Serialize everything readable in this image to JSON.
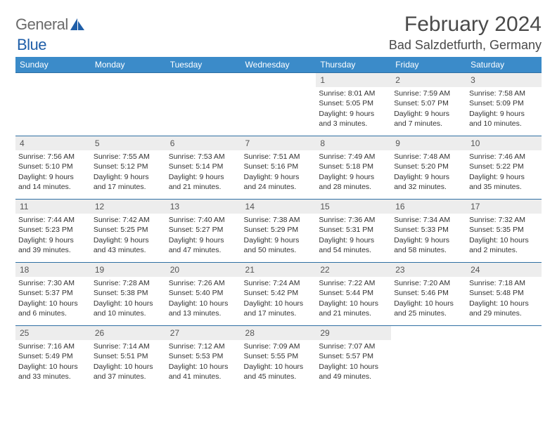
{
  "brand": {
    "word1": "General",
    "word2": "Blue"
  },
  "title": "February 2024",
  "location": "Bad Salzdetfurth, Germany",
  "colors": {
    "header_bg": "#3b8bc9",
    "header_text": "#ffffff",
    "border": "#2f6fa3",
    "daynum_bg": "#ededed",
    "text": "#333333",
    "logo_gray": "#6b6b6b",
    "logo_blue": "#1f5ea8"
  },
  "daysOfWeek": [
    "Sunday",
    "Monday",
    "Tuesday",
    "Wednesday",
    "Thursday",
    "Friday",
    "Saturday"
  ],
  "weeks": [
    [
      null,
      null,
      null,
      null,
      {
        "n": "1",
        "sr": "Sunrise: 8:01 AM",
        "ss": "Sunset: 5:05 PM",
        "d1": "Daylight: 9 hours",
        "d2": "and 3 minutes."
      },
      {
        "n": "2",
        "sr": "Sunrise: 7:59 AM",
        "ss": "Sunset: 5:07 PM",
        "d1": "Daylight: 9 hours",
        "d2": "and 7 minutes."
      },
      {
        "n": "3",
        "sr": "Sunrise: 7:58 AM",
        "ss": "Sunset: 5:09 PM",
        "d1": "Daylight: 9 hours",
        "d2": "and 10 minutes."
      }
    ],
    [
      {
        "n": "4",
        "sr": "Sunrise: 7:56 AM",
        "ss": "Sunset: 5:10 PM",
        "d1": "Daylight: 9 hours",
        "d2": "and 14 minutes."
      },
      {
        "n": "5",
        "sr": "Sunrise: 7:55 AM",
        "ss": "Sunset: 5:12 PM",
        "d1": "Daylight: 9 hours",
        "d2": "and 17 minutes."
      },
      {
        "n": "6",
        "sr": "Sunrise: 7:53 AM",
        "ss": "Sunset: 5:14 PM",
        "d1": "Daylight: 9 hours",
        "d2": "and 21 minutes."
      },
      {
        "n": "7",
        "sr": "Sunrise: 7:51 AM",
        "ss": "Sunset: 5:16 PM",
        "d1": "Daylight: 9 hours",
        "d2": "and 24 minutes."
      },
      {
        "n": "8",
        "sr": "Sunrise: 7:49 AM",
        "ss": "Sunset: 5:18 PM",
        "d1": "Daylight: 9 hours",
        "d2": "and 28 minutes."
      },
      {
        "n": "9",
        "sr": "Sunrise: 7:48 AM",
        "ss": "Sunset: 5:20 PM",
        "d1": "Daylight: 9 hours",
        "d2": "and 32 minutes."
      },
      {
        "n": "10",
        "sr": "Sunrise: 7:46 AM",
        "ss": "Sunset: 5:22 PM",
        "d1": "Daylight: 9 hours",
        "d2": "and 35 minutes."
      }
    ],
    [
      {
        "n": "11",
        "sr": "Sunrise: 7:44 AM",
        "ss": "Sunset: 5:23 PM",
        "d1": "Daylight: 9 hours",
        "d2": "and 39 minutes."
      },
      {
        "n": "12",
        "sr": "Sunrise: 7:42 AM",
        "ss": "Sunset: 5:25 PM",
        "d1": "Daylight: 9 hours",
        "d2": "and 43 minutes."
      },
      {
        "n": "13",
        "sr": "Sunrise: 7:40 AM",
        "ss": "Sunset: 5:27 PM",
        "d1": "Daylight: 9 hours",
        "d2": "and 47 minutes."
      },
      {
        "n": "14",
        "sr": "Sunrise: 7:38 AM",
        "ss": "Sunset: 5:29 PM",
        "d1": "Daylight: 9 hours",
        "d2": "and 50 minutes."
      },
      {
        "n": "15",
        "sr": "Sunrise: 7:36 AM",
        "ss": "Sunset: 5:31 PM",
        "d1": "Daylight: 9 hours",
        "d2": "and 54 minutes."
      },
      {
        "n": "16",
        "sr": "Sunrise: 7:34 AM",
        "ss": "Sunset: 5:33 PM",
        "d1": "Daylight: 9 hours",
        "d2": "and 58 minutes."
      },
      {
        "n": "17",
        "sr": "Sunrise: 7:32 AM",
        "ss": "Sunset: 5:35 PM",
        "d1": "Daylight: 10 hours",
        "d2": "and 2 minutes."
      }
    ],
    [
      {
        "n": "18",
        "sr": "Sunrise: 7:30 AM",
        "ss": "Sunset: 5:37 PM",
        "d1": "Daylight: 10 hours",
        "d2": "and 6 minutes."
      },
      {
        "n": "19",
        "sr": "Sunrise: 7:28 AM",
        "ss": "Sunset: 5:38 PM",
        "d1": "Daylight: 10 hours",
        "d2": "and 10 minutes."
      },
      {
        "n": "20",
        "sr": "Sunrise: 7:26 AM",
        "ss": "Sunset: 5:40 PM",
        "d1": "Daylight: 10 hours",
        "d2": "and 13 minutes."
      },
      {
        "n": "21",
        "sr": "Sunrise: 7:24 AM",
        "ss": "Sunset: 5:42 PM",
        "d1": "Daylight: 10 hours",
        "d2": "and 17 minutes."
      },
      {
        "n": "22",
        "sr": "Sunrise: 7:22 AM",
        "ss": "Sunset: 5:44 PM",
        "d1": "Daylight: 10 hours",
        "d2": "and 21 minutes."
      },
      {
        "n": "23",
        "sr": "Sunrise: 7:20 AM",
        "ss": "Sunset: 5:46 PM",
        "d1": "Daylight: 10 hours",
        "d2": "and 25 minutes."
      },
      {
        "n": "24",
        "sr": "Sunrise: 7:18 AM",
        "ss": "Sunset: 5:48 PM",
        "d1": "Daylight: 10 hours",
        "d2": "and 29 minutes."
      }
    ],
    [
      {
        "n": "25",
        "sr": "Sunrise: 7:16 AM",
        "ss": "Sunset: 5:49 PM",
        "d1": "Daylight: 10 hours",
        "d2": "and 33 minutes."
      },
      {
        "n": "26",
        "sr": "Sunrise: 7:14 AM",
        "ss": "Sunset: 5:51 PM",
        "d1": "Daylight: 10 hours",
        "d2": "and 37 minutes."
      },
      {
        "n": "27",
        "sr": "Sunrise: 7:12 AM",
        "ss": "Sunset: 5:53 PM",
        "d1": "Daylight: 10 hours",
        "d2": "and 41 minutes."
      },
      {
        "n": "28",
        "sr": "Sunrise: 7:09 AM",
        "ss": "Sunset: 5:55 PM",
        "d1": "Daylight: 10 hours",
        "d2": "and 45 minutes."
      },
      {
        "n": "29",
        "sr": "Sunrise: 7:07 AM",
        "ss": "Sunset: 5:57 PM",
        "d1": "Daylight: 10 hours",
        "d2": "and 49 minutes."
      },
      null,
      null
    ]
  ]
}
